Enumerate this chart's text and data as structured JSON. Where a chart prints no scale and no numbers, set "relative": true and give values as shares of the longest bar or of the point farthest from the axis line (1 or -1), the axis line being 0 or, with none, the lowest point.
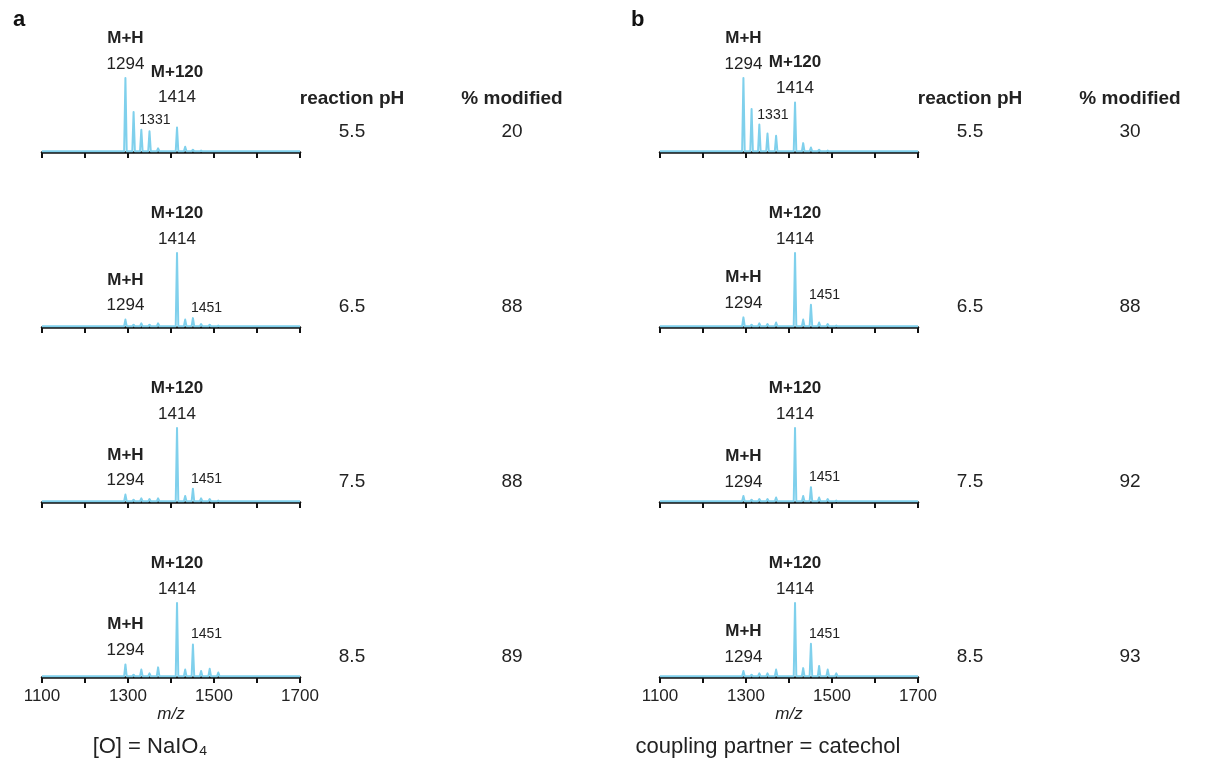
{
  "chart_data": [
    {
      "type": "line",
      "title": "a",
      "relative": true,
      "marker": "none",
      "tick_labels": false,
      "xlim": [
        1100,
        1700
      ],
      "xticks": [
        1100,
        1200,
        1300,
        1400,
        1500,
        1600,
        1700
      ],
      "x": [
        1100,
        1200,
        1291,
        1294,
        1297,
        1310,
        1313,
        1316,
        1328,
        1331,
        1334,
        1347,
        1350,
        1353,
        1367,
        1370,
        1373,
        1411,
        1414,
        1417,
        1430,
        1433,
        1436,
        1448,
        1451,
        1454,
        1467,
        1470,
        1473,
        1487,
        1490,
        1493,
        1507,
        1510,
        1513,
        1600,
        1700
      ],
      "series": [
        {
          "color": "#7fd0ec",
          "values": [
            0.01,
            0.01,
            0.01,
            1,
            0.01,
            0.01,
            0.54,
            0.01,
            0.01,
            0.3,
            0.01,
            0.01,
            0.28,
            0.01,
            0.01,
            0.05,
            0.01,
            0.01,
            0.33,
            0.01,
            0.01,
            0.07,
            0.01,
            0.01,
            0.03,
            0.01,
            0.01,
            0.02,
            0.01,
            0.01,
            0.01,
            0.01,
            0.01,
            0.01,
            0.01,
            0.01,
            0.01
          ]
        }
      ],
      "annotations": [
        {
          "text": "M+H\n1294",
          "x": 1294,
          "y": 1
        },
        {
          "text": "1331",
          "x": 1331,
          "y": 0.3
        },
        {
          "text": "M+120\n1414",
          "x": 1414,
          "y": 0.33
        },
        "reaction pH",
        "% modified",
        "5.5",
        "20"
      ]
    },
    {
      "type": "line",
      "relative": true,
      "marker": "none",
      "tick_labels": false,
      "xlim": [
        1100,
        1700
      ],
      "xticks": [
        1100,
        1200,
        1300,
        1400,
        1500,
        1600,
        1700
      ],
      "x": [
        1100,
        1200,
        1291,
        1294,
        1297,
        1310,
        1313,
        1316,
        1328,
        1331,
        1334,
        1347,
        1350,
        1353,
        1367,
        1370,
        1373,
        1411,
        1414,
        1417,
        1430,
        1433,
        1436,
        1448,
        1451,
        1454,
        1467,
        1470,
        1473,
        1487,
        1490,
        1493,
        1507,
        1510,
        1513,
        1600,
        1700
      ],
      "series": [
        {
          "color": "#7fd0ec",
          "values": [
            0.01,
            0.01,
            0.01,
            0.1,
            0.01,
            0.01,
            0.03,
            0.01,
            0.01,
            0.05,
            0.01,
            0.01,
            0.03,
            0.01,
            0.01,
            0.05,
            0.01,
            0.01,
            1,
            0.01,
            0.01,
            0.1,
            0.01,
            0.01,
            0.12,
            0.01,
            0.01,
            0.04,
            0.01,
            0.01,
            0.03,
            0.01,
            0.01,
            0.02,
            0.01,
            0.01,
            0.01
          ]
        }
      ],
      "annotations": [
        {
          "text": "M+H\n1294",
          "x": 1294,
          "y": 0.1
        },
        {
          "text": "M+120\n1414",
          "x": 1414,
          "y": 1
        },
        {
          "text": "1451",
          "x": 1451,
          "y": 0.12
        },
        "6.5",
        "88"
      ]
    },
    {
      "type": "line",
      "relative": true,
      "marker": "none",
      "tick_labels": false,
      "xlim": [
        1100,
        1700
      ],
      "xticks": [
        1100,
        1200,
        1300,
        1400,
        1500,
        1600,
        1700
      ],
      "x": [
        1100,
        1200,
        1291,
        1294,
        1297,
        1310,
        1313,
        1316,
        1328,
        1331,
        1334,
        1347,
        1350,
        1353,
        1367,
        1370,
        1373,
        1411,
        1414,
        1417,
        1430,
        1433,
        1436,
        1448,
        1451,
        1454,
        1467,
        1470,
        1473,
        1487,
        1490,
        1493,
        1507,
        1510,
        1513,
        1600,
        1700
      ],
      "series": [
        {
          "color": "#7fd0ec",
          "values": [
            0.01,
            0.01,
            0.01,
            0.1,
            0.01,
            0.01,
            0.03,
            0.01,
            0.01,
            0.05,
            0.01,
            0.01,
            0.04,
            0.01,
            0.01,
            0.05,
            0.01,
            0.01,
            1,
            0.01,
            0.01,
            0.08,
            0.01,
            0.01,
            0.18,
            0.01,
            0.01,
            0.05,
            0.01,
            0.01,
            0.04,
            0.01,
            0.01,
            0.02,
            0.01,
            0.01,
            0.01
          ]
        }
      ],
      "annotations": [
        {
          "text": "M+H\n1294",
          "x": 1294,
          "y": 0.1
        },
        {
          "text": "M+120\n1414",
          "x": 1414,
          "y": 1
        },
        {
          "text": "1451",
          "x": 1451,
          "y": 0.18
        },
        "7.5",
        "88"
      ]
    },
    {
      "type": "line",
      "relative": true,
      "marker": "none",
      "tick_labels": "x",
      "xlabel": "m/z",
      "xlim": [
        1100,
        1700
      ],
      "xticks": [
        1100,
        {
          "value": 1200,
          "label": null
        },
        1300,
        {
          "value": 1400,
          "label": null
        },
        1500,
        {
          "value": 1600,
          "label": null
        },
        1700
      ],
      "x": [
        1100,
        1200,
        1291,
        1294,
        1297,
        1310,
        1313,
        1316,
        1328,
        1331,
        1334,
        1347,
        1350,
        1353,
        1367,
        1370,
        1373,
        1411,
        1414,
        1417,
        1430,
        1433,
        1436,
        1448,
        1451,
        1454,
        1467,
        1470,
        1473,
        1487,
        1490,
        1493,
        1507,
        1510,
        1513,
        1600,
        1700
      ],
      "series": [
        {
          "color": "#7fd0ec",
          "values": [
            0.01,
            0.01,
            0.01,
            0.17,
            0.01,
            0.01,
            0.03,
            0.01,
            0.01,
            0.1,
            0.01,
            0.01,
            0.05,
            0.01,
            0.01,
            0.13,
            0.01,
            0.01,
            1,
            0.01,
            0.01,
            0.1,
            0.01,
            0.01,
            0.44,
            0.01,
            0.01,
            0.08,
            0.01,
            0.01,
            0.11,
            0.01,
            0.01,
            0.06,
            0.01,
            0.01,
            0.01
          ]
        }
      ],
      "annotations": [
        {
          "text": "M+H\n1294",
          "x": 1294,
          "y": 0.17
        },
        {
          "text": "M+120\n1414",
          "x": 1414,
          "y": 1
        },
        {
          "text": "1451",
          "x": 1451,
          "y": 0.44
        },
        "8.5",
        "89",
        "[O] = NaIO₄"
      ]
    },
    {
      "type": "line",
      "title": "b",
      "relative": true,
      "marker": "none",
      "tick_labels": false,
      "xlim": [
        1100,
        1700
      ],
      "xticks": [
        1100,
        1200,
        1300,
        1400,
        1500,
        1600,
        1700
      ],
      "x": [
        1100,
        1200,
        1291,
        1294,
        1297,
        1310,
        1313,
        1316,
        1328,
        1331,
        1334,
        1347,
        1350,
        1353,
        1367,
        1370,
        1373,
        1411,
        1414,
        1417,
        1430,
        1433,
        1436,
        1448,
        1451,
        1454,
        1467,
        1470,
        1473,
        1487,
        1490,
        1493,
        1507,
        1510,
        1513,
        1600,
        1700
      ],
      "series": [
        {
          "color": "#7fd0ec",
          "values": [
            0.01,
            0.01,
            0.01,
            1,
            0.01,
            0.01,
            0.58,
            0.01,
            0.01,
            0.37,
            0.01,
            0.01,
            0.25,
            0.01,
            0.01,
            0.22,
            0.01,
            0.01,
            0.67,
            0.01,
            0.01,
            0.12,
            0.01,
            0.01,
            0.06,
            0.01,
            0.01,
            0.03,
            0.01,
            0.01,
            0.02,
            0.01,
            0.01,
            0.01,
            0.01,
            0.01,
            0.01
          ]
        }
      ],
      "annotations": [
        {
          "text": "M+H\n1294",
          "x": 1294,
          "y": 1
        },
        {
          "text": "1331",
          "x": 1331,
          "y": 0.37
        },
        {
          "text": "M+120\n1414",
          "x": 1414,
          "y": 0.67
        },
        "reaction pH",
        "% modified",
        "5.5",
        "30"
      ]
    },
    {
      "type": "line",
      "relative": true,
      "marker": "none",
      "tick_labels": false,
      "xlim": [
        1100,
        1700
      ],
      "xticks": [
        1100,
        1200,
        1300,
        1400,
        1500,
        1600,
        1700
      ],
      "x": [
        1100,
        1200,
        1291,
        1294,
        1297,
        1310,
        1313,
        1316,
        1328,
        1331,
        1334,
        1347,
        1350,
        1353,
        1367,
        1370,
        1373,
        1411,
        1414,
        1417,
        1430,
        1433,
        1436,
        1448,
        1451,
        1454,
        1467,
        1470,
        1473,
        1487,
        1490,
        1493,
        1507,
        1510,
        1513,
        1600,
        1700
      ],
      "series": [
        {
          "color": "#7fd0ec",
          "values": [
            0.01,
            0.01,
            0.01,
            0.13,
            0.01,
            0.01,
            0.03,
            0.01,
            0.01,
            0.05,
            0.01,
            0.01,
            0.04,
            0.01,
            0.01,
            0.06,
            0.01,
            0.01,
            1,
            0.01,
            0.01,
            0.1,
            0.01,
            0.01,
            0.3,
            0.01,
            0.01,
            0.06,
            0.01,
            0.01,
            0.04,
            0.01,
            0.01,
            0.02,
            0.01,
            0.01,
            0.01
          ]
        }
      ],
      "annotations": [
        {
          "text": "M+H\n1294",
          "x": 1294,
          "y": 0.13
        },
        {
          "text": "M+120\n1414",
          "x": 1414,
          "y": 1
        },
        {
          "text": "1451",
          "x": 1451,
          "y": 0.3
        },
        "6.5",
        "88"
      ]
    },
    {
      "type": "line",
      "relative": true,
      "marker": "none",
      "tick_labels": false,
      "xlim": [
        1100,
        1700
      ],
      "xticks": [
        1100,
        1200,
        1300,
        1400,
        1500,
        1600,
        1700
      ],
      "x": [
        1100,
        1200,
        1291,
        1294,
        1297,
        1310,
        1313,
        1316,
        1328,
        1331,
        1334,
        1347,
        1350,
        1353,
        1367,
        1370,
        1373,
        1411,
        1414,
        1417,
        1430,
        1433,
        1436,
        1448,
        1451,
        1454,
        1467,
        1470,
        1473,
        1487,
        1490,
        1493,
        1507,
        1510,
        1513,
        1600,
        1700
      ],
      "series": [
        {
          "color": "#7fd0ec",
          "values": [
            0.01,
            0.01,
            0.01,
            0.08,
            0.01,
            0.01,
            0.03,
            0.01,
            0.01,
            0.04,
            0.01,
            0.01,
            0.04,
            0.01,
            0.01,
            0.06,
            0.01,
            0.01,
            1,
            0.01,
            0.01,
            0.08,
            0.01,
            0.01,
            0.2,
            0.01,
            0.01,
            0.06,
            0.01,
            0.01,
            0.04,
            0.01,
            0.01,
            0.02,
            0.01,
            0.01,
            0.01
          ]
        }
      ],
      "annotations": [
        {
          "text": "M+H\n1294",
          "x": 1294,
          "y": 0.08
        },
        {
          "text": "M+120\n1414",
          "x": 1414,
          "y": 1
        },
        {
          "text": "1451",
          "x": 1451,
          "y": 0.2
        },
        "7.5",
        "92"
      ]
    },
    {
      "type": "line",
      "relative": true,
      "marker": "none",
      "tick_labels": "x",
      "xlabel": "m/z",
      "xlim": [
        1100,
        1700
      ],
      "xticks": [
        1100,
        {
          "value": 1200,
          "label": null
        },
        1300,
        {
          "value": 1400,
          "label": null
        },
        1500,
        {
          "value": 1600,
          "label": null
        },
        1700
      ],
      "x": [
        1100,
        1200,
        1291,
        1294,
        1297,
        1310,
        1313,
        1316,
        1328,
        1331,
        1334,
        1347,
        1350,
        1353,
        1367,
        1370,
        1373,
        1411,
        1414,
        1417,
        1430,
        1433,
        1436,
        1448,
        1451,
        1454,
        1467,
        1470,
        1473,
        1487,
        1490,
        1493,
        1507,
        1510,
        1513,
        1600,
        1700
      ],
      "series": [
        {
          "color": "#7fd0ec",
          "values": [
            0.01,
            0.01,
            0.01,
            0.08,
            0.01,
            0.01,
            0.03,
            0.01,
            0.01,
            0.05,
            0.01,
            0.01,
            0.05,
            0.01,
            0.01,
            0.1,
            0.01,
            0.01,
            1,
            0.01,
            0.01,
            0.12,
            0.01,
            0.01,
            0.45,
            0.01,
            0.01,
            0.15,
            0.01,
            0.01,
            0.1,
            0.01,
            0.01,
            0.05,
            0.01,
            0.01,
            0.01
          ]
        }
      ],
      "annotations": [
        {
          "text": "M+H\n1294",
          "x": 1294,
          "y": 0.08
        },
        {
          "text": "M+120\n1414",
          "x": 1414,
          "y": 1
        },
        {
          "text": "1451",
          "x": 1451,
          "y": 0.45
        },
        "8.5",
        "93",
        "coupling partner = catechol"
      ]
    }
  ]
}
